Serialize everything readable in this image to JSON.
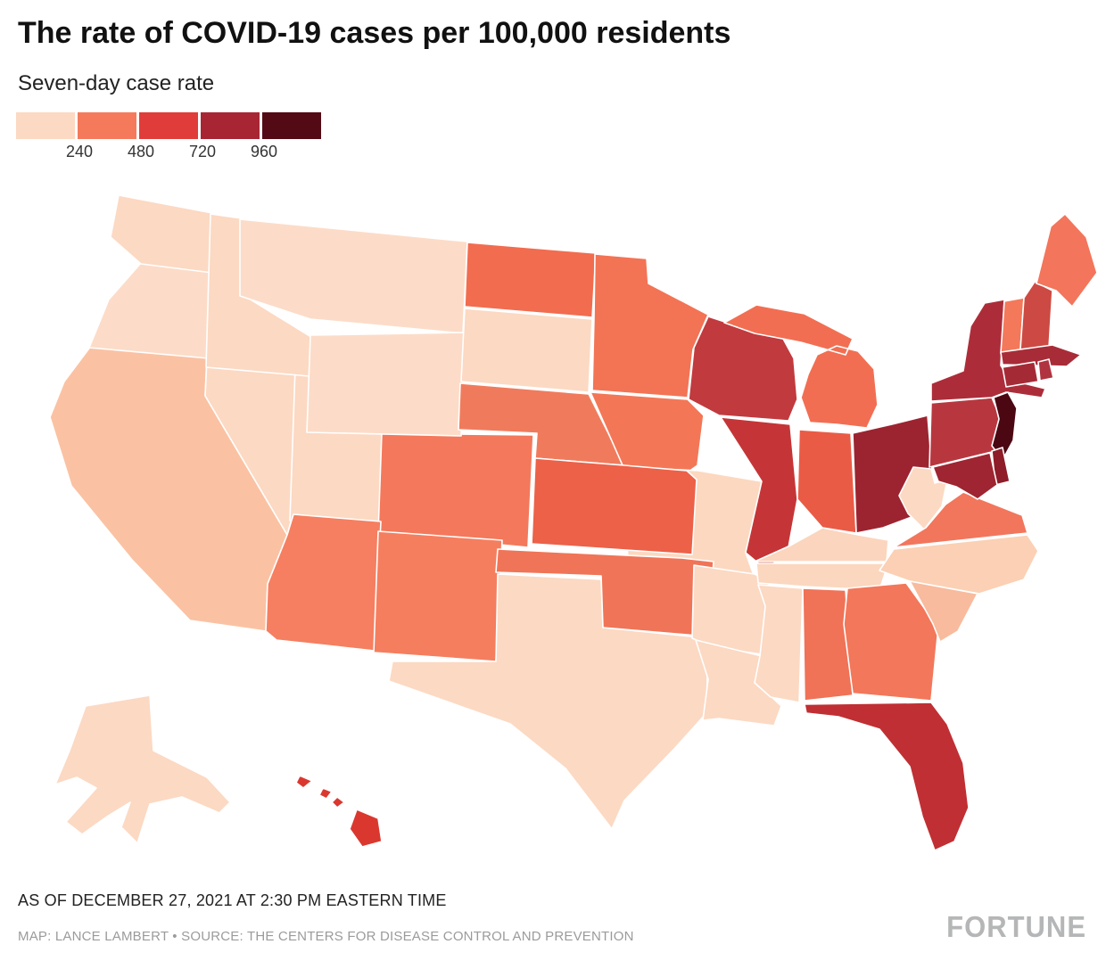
{
  "header": {
    "title": "The rate of COVID-19 cases per 100,000 residents",
    "subtitle": "Seven-day case rate"
  },
  "legend": {
    "swatches": [
      "#fcd9c3",
      "#f57a5b",
      "#e03d3a",
      "#a82634",
      "#530a15"
    ],
    "tick_labels": [
      "240",
      "480",
      "720",
      "960"
    ]
  },
  "footer": {
    "as_of": "AS OF DECEMBER 27, 2021 AT 2:30 PM EASTERN TIME",
    "credit": "MAP: LANCE LAMBERT • SOURCE: THE CENTERS FOR DISEASE CONTROL AND PREVENTION",
    "brand": "FORTUNE"
  },
  "chart_data": {
    "type": "choropleth",
    "geography": "United States (states, with Alaska and Hawaii insets)",
    "metric": "Seven-day COVID-19 case rate per 100,000 residents",
    "legend_thresholds": [
      240,
      480,
      720,
      960
    ],
    "legend_position": "top-left",
    "states": [
      {
        "abbr": "AL",
        "name": "Alabama",
        "value_estimate": 420,
        "color": "#f07257"
      },
      {
        "abbr": "AK",
        "name": "Alaska",
        "value_estimate": 150,
        "color": "#fcd9c3"
      },
      {
        "abbr": "AZ",
        "name": "Arizona",
        "value_estimate": 400,
        "color": "#f57f60"
      },
      {
        "abbr": "AR",
        "name": "Arkansas",
        "value_estimate": 160,
        "color": "#fcd9c3"
      },
      {
        "abbr": "CA",
        "name": "California",
        "value_estimate": 250,
        "color": "#fac2a3"
      },
      {
        "abbr": "CO",
        "name": "Colorado",
        "value_estimate": 410,
        "color": "#f4785b"
      },
      {
        "abbr": "CT",
        "name": "Connecticut",
        "value_estimate": 700,
        "color": "#a42b36"
      },
      {
        "abbr": "DE",
        "name": "Delaware",
        "value_estimate": 790,
        "color": "#8e1c29"
      },
      {
        "abbr": "FL",
        "name": "Florida",
        "value_estimate": 690,
        "color": "#c02f33"
      },
      {
        "abbr": "GA",
        "name": "Georgia",
        "value_estimate": 420,
        "color": "#f3775a"
      },
      {
        "abbr": "HI",
        "name": "Hawaii",
        "value_estimate": 540,
        "color": "#da382f"
      },
      {
        "abbr": "ID",
        "name": "Idaho",
        "value_estimate": 150,
        "color": "#fcd9c3"
      },
      {
        "abbr": "IL",
        "name": "Illinois",
        "value_estimate": 640,
        "color": "#c53537"
      },
      {
        "abbr": "IN",
        "name": "Indiana",
        "value_estimate": 490,
        "color": "#ea5b46"
      },
      {
        "abbr": "IA",
        "name": "Iowa",
        "value_estimate": 400,
        "color": "#f37757"
      },
      {
        "abbr": "KS",
        "name": "Kansas",
        "value_estimate": 450,
        "color": "#ec6148"
      },
      {
        "abbr": "KY",
        "name": "Kentucky",
        "value_estimate": 190,
        "color": "#fbd5bd"
      },
      {
        "abbr": "LA",
        "name": "Louisiana",
        "value_estimate": 160,
        "color": "#fcd9c3"
      },
      {
        "abbr": "ME",
        "name": "Maine",
        "value_estimate": 420,
        "color": "#f3755b"
      },
      {
        "abbr": "MD",
        "name": "Maryland",
        "value_estimate": 760,
        "color": "#9e2531"
      },
      {
        "abbr": "MA",
        "name": "Massachusetts",
        "value_estimate": 710,
        "color": "#a82c38"
      },
      {
        "abbr": "MI",
        "name": "Michigan",
        "value_estimate": 430,
        "color": "#f26e52"
      },
      {
        "abbr": "MN",
        "name": "Minnesota",
        "value_estimate": 420,
        "color": "#f37355"
      },
      {
        "abbr": "MS",
        "name": "Mississippi",
        "value_estimate": 160,
        "color": "#fcd9c3"
      },
      {
        "abbr": "MO",
        "name": "Missouri",
        "value_estimate": 180,
        "color": "#fcd8c0"
      },
      {
        "abbr": "MT",
        "name": "Montana",
        "value_estimate": 140,
        "color": "#fcdcc8"
      },
      {
        "abbr": "NE",
        "name": "Nebraska",
        "value_estimate": 420,
        "color": "#f07b5c"
      },
      {
        "abbr": "NV",
        "name": "Nevada",
        "value_estimate": 150,
        "color": "#fcd9c3"
      },
      {
        "abbr": "NH",
        "name": "New Hampshire",
        "value_estimate": 530,
        "color": "#cc4a43"
      },
      {
        "abbr": "NJ",
        "name": "New Jersey",
        "value_estimate": 1050,
        "color": "#4b0812"
      },
      {
        "abbr": "NM",
        "name": "New Mexico",
        "value_estimate": 420,
        "color": "#f57e5f"
      },
      {
        "abbr": "NY",
        "name": "New York",
        "value_estimate": 690,
        "color": "#ac2d39"
      },
      {
        "abbr": "NC",
        "name": "North Carolina",
        "value_estimate": 210,
        "color": "#fbd0b4"
      },
      {
        "abbr": "ND",
        "name": "North Dakota",
        "value_estimate": 440,
        "color": "#f26c4f"
      },
      {
        "abbr": "OH",
        "name": "Ohio",
        "value_estimate": 780,
        "color": "#9c2430"
      },
      {
        "abbr": "OK",
        "name": "Oklahoma",
        "value_estimate": 420,
        "color": "#f07457"
      },
      {
        "abbr": "OR",
        "name": "Oregon",
        "value_estimate": 140,
        "color": "#fcdcc8"
      },
      {
        "abbr": "PA",
        "name": "Pennsylvania",
        "value_estimate": 620,
        "color": "#b8373f"
      },
      {
        "abbr": "RI",
        "name": "Rhode Island",
        "value_estimate": 700,
        "color": "#b03340"
      },
      {
        "abbr": "SC",
        "name": "South Carolina",
        "value_estimate": 280,
        "color": "#f8bb9d"
      },
      {
        "abbr": "SD",
        "name": "South Dakota",
        "value_estimate": 170,
        "color": "#fcd9c3"
      },
      {
        "abbr": "TN",
        "name": "Tennessee",
        "value_estimate": 170,
        "color": "#fbd7bf"
      },
      {
        "abbr": "TX",
        "name": "Texas",
        "value_estimate": 170,
        "color": "#fcd9c3"
      },
      {
        "abbr": "UT",
        "name": "Utah",
        "value_estimate": 160,
        "color": "#fcd9c3"
      },
      {
        "abbr": "VT",
        "name": "Vermont",
        "value_estimate": 430,
        "color": "#f4785a"
      },
      {
        "abbr": "VA",
        "name": "Virginia",
        "value_estimate": 400,
        "color": "#f2765c"
      },
      {
        "abbr": "WA",
        "name": "Washington",
        "value_estimate": 150,
        "color": "#fcd9c3"
      },
      {
        "abbr": "WV",
        "name": "West Virginia",
        "value_estimate": 160,
        "color": "#fcd9c3"
      },
      {
        "abbr": "WI",
        "name": "Wisconsin",
        "value_estimate": 610,
        "color": "#c13a3e"
      },
      {
        "abbr": "WY",
        "name": "Wyoming",
        "value_estimate": 140,
        "color": "#fcdcc8"
      }
    ]
  }
}
